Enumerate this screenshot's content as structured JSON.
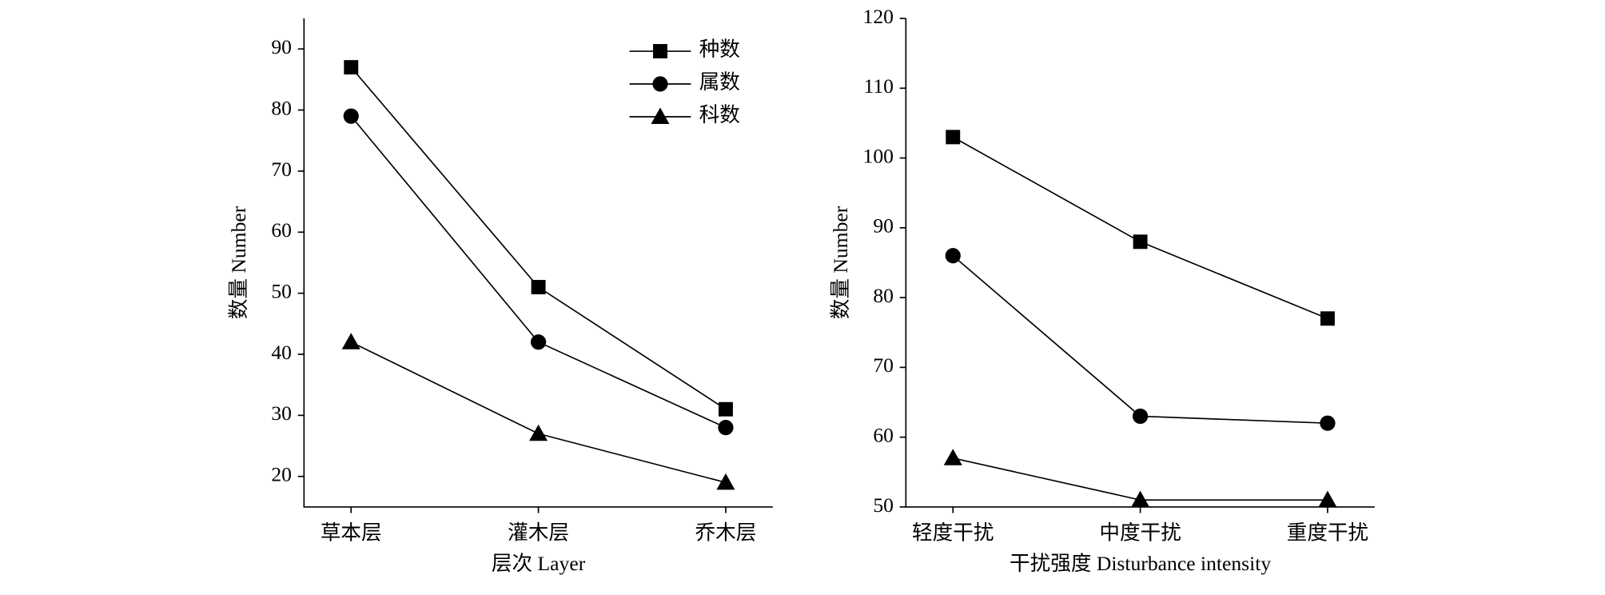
{
  "chart_data": [
    {
      "type": "line",
      "x_label": "层次 Layer",
      "y_label": "数量 Number",
      "categories": [
        "草本层",
        "灌木层",
        "乔木层"
      ],
      "series": [
        {
          "name": "种数",
          "color": "#000000",
          "marker": "square",
          "values": [
            87,
            51,
            31
          ]
        },
        {
          "name": "属数",
          "color": "#000000",
          "marker": "circle",
          "values": [
            79,
            42,
            28
          ]
        },
        {
          "name": "科数",
          "color": "#000000",
          "marker": "triangle",
          "values": [
            42,
            27,
            19
          ]
        }
      ],
      "ylim": [
        15,
        95
      ],
      "yticks": [
        20,
        30,
        40,
        50,
        60,
        70,
        80,
        90
      ],
      "legend": "upper right"
    },
    {
      "type": "line",
      "x_label": "干扰强度 Disturbance intensity",
      "y_label": "数量 Number",
      "categories": [
        "轻度干扰",
        "中度干扰",
        "重度干扰"
      ],
      "series": [
        {
          "name": "种数",
          "color": "#000000",
          "marker": "square",
          "values": [
            103,
            88,
            77
          ]
        },
        {
          "name": "属数",
          "color": "#000000",
          "marker": "circle",
          "values": [
            86,
            63,
            62
          ]
        },
        {
          "name": "科数",
          "color": "#000000",
          "marker": "triangle",
          "values": [
            57,
            51,
            51
          ]
        }
      ],
      "ylim": [
        50,
        120
      ],
      "yticks": [
        50,
        60,
        70,
        80,
        90,
        100,
        110,
        120
      ]
    }
  ]
}
